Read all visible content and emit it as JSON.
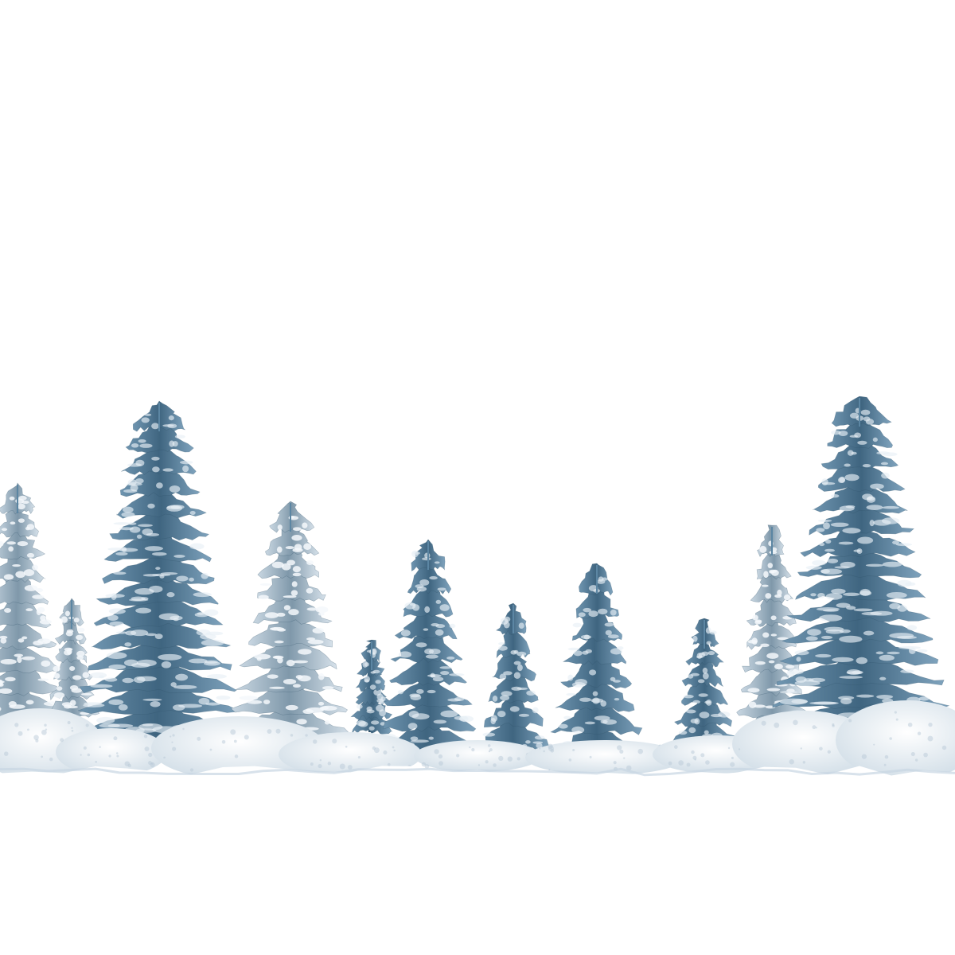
{
  "scene": {
    "subject": "snowy-spruce-tree-line",
    "background_color": "#ffffff",
    "snow_color": "#eef3f7",
    "foliage_colors": {
      "dark": "#2f4f66",
      "mid": "#5c86a3",
      "light": "#9fbdd2",
      "frost": "#e8f0f6"
    },
    "tree_count": 11
  }
}
